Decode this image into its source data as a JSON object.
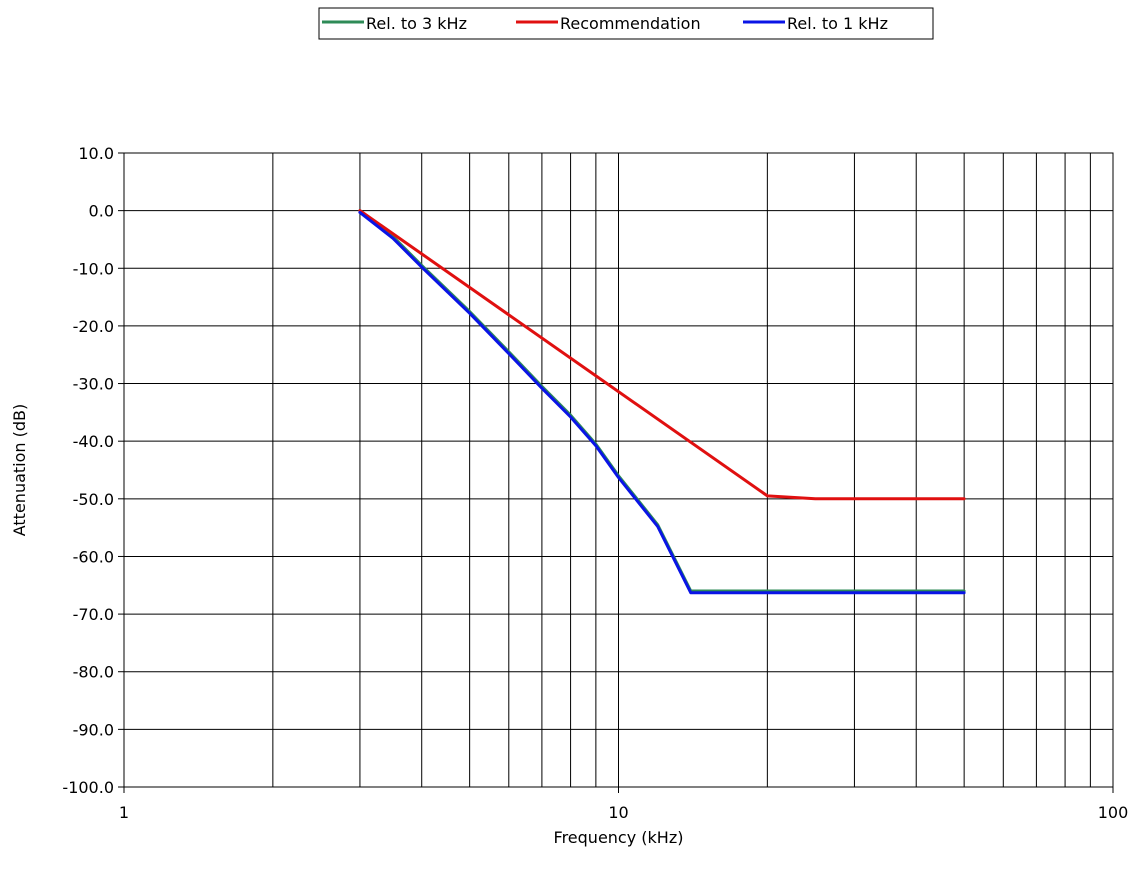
{
  "chart_data": {
    "type": "line",
    "xlabel": "Frequency (kHz)",
    "ylabel": "Attenuation (dB)",
    "x_scale": "log",
    "xlim": [
      1,
      100
    ],
    "ylim": [
      -100,
      10
    ],
    "x_ticks": [
      1,
      10,
      100
    ],
    "x_tick_labels": [
      "1",
      "10",
      "100"
    ],
    "y_ticks": [
      10,
      0,
      -10,
      -20,
      -30,
      -40,
      -50,
      -60,
      -70,
      -80,
      -90,
      -100
    ],
    "y_tick_labels": [
      "10.0",
      "0.0",
      "-10.0",
      "-20.0",
      "-30.0",
      "-40.0",
      "-50.0",
      "-60.0",
      "-70.0",
      "-80.0",
      "-90.0",
      "-100.0"
    ],
    "grid": true,
    "legend_position": "top-center",
    "series": [
      {
        "name": "Rel. to 3 kHz",
        "color": "#2e8b57",
        "x": [
          3,
          3.5,
          4,
          5,
          6,
          7,
          8,
          9,
          10,
          12,
          14,
          20,
          30,
          40,
          50
        ],
        "y": [
          0,
          -4.5,
          -9.5,
          -17.5,
          -24.5,
          -30.5,
          -35.5,
          -40.5,
          -46,
          -54.5,
          -66,
          -66,
          -66,
          -66,
          -66
        ]
      },
      {
        "name": "Recommendation",
        "color": "#e01010",
        "x": [
          3,
          20,
          25,
          50
        ],
        "y": [
          0,
          -49.5,
          -50,
          -50
        ]
      },
      {
        "name": "Rel. to 1 kHz",
        "color": "#0a14e6",
        "x": [
          3,
          3.5,
          4,
          5,
          6,
          7,
          8,
          9,
          10,
          12,
          14,
          20,
          30,
          40,
          50
        ],
        "y": [
          -0.3,
          -4.8,
          -9.8,
          -17.8,
          -24.8,
          -30.8,
          -35.8,
          -40.8,
          -46.3,
          -54.8,
          -66.3,
          -66.3,
          -66.3,
          -66.3,
          -66.3
        ]
      }
    ]
  }
}
